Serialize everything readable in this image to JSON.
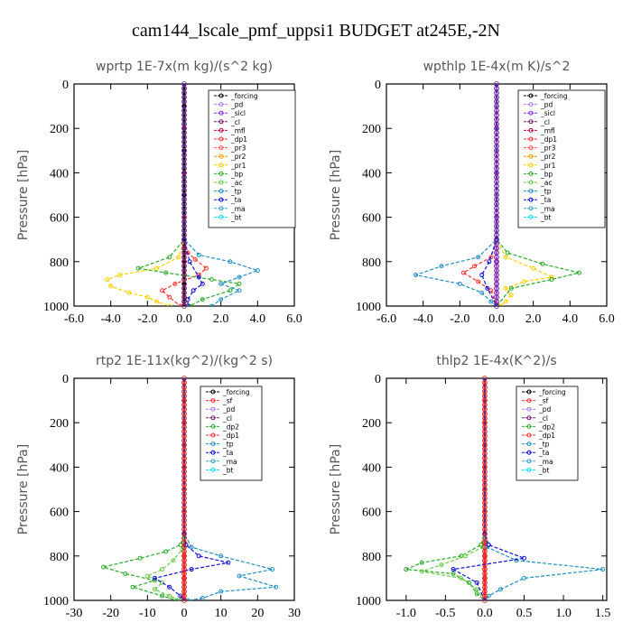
{
  "figure_title": "cam144_lscale_pmf_uppsi1  BUDGET at245E,-2N",
  "chart_data": [
    {
      "type": "line",
      "title": "wprtp  1E-7x(m kg)/(s^2 kg)",
      "ylabel": "Pressure [hPa]",
      "xlim": [
        -6,
        6
      ],
      "ylim": [
        0,
        1000
      ],
      "y_reversed": true,
      "xticks": [
        "-6.0",
        "-4.0",
        "-2.0",
        "0.0",
        "2.0",
        "4.0",
        "6.0"
      ],
      "yticks": [
        "0",
        "200",
        "400",
        "600",
        "800",
        "1000"
      ],
      "legend": [
        "_forcing",
        "_pd",
        "_sicl",
        "_cl",
        "_mfl",
        "_dp1",
        "_pr3",
        "_pr2",
        "_pr1",
        "_bp",
        "_ac",
        "_tp",
        "_ta",
        "_ma",
        "_bt"
      ],
      "series": [
        {
          "name": "_forcing",
          "color": "#000000",
          "x": [
            0,
            0,
            0,
            0,
            0,
            0,
            0,
            0,
            0,
            0,
            0
          ],
          "y": [
            0,
            100,
            200,
            300,
            400,
            500,
            600,
            700,
            800,
            900,
            1000
          ]
        },
        {
          "name": "_pd",
          "color": "#b07cf0",
          "x": [
            0,
            0,
            0,
            0,
            0,
            0
          ],
          "y": [
            0,
            200,
            400,
            600,
            800,
            1000
          ]
        },
        {
          "name": "_mfl",
          "color": "#c0004a",
          "x": [
            0,
            0,
            0,
            0,
            0,
            0
          ],
          "y": [
            0,
            200,
            400,
            600,
            800,
            1000
          ]
        },
        {
          "name": "_dp1",
          "color": "#ff3030",
          "x": [
            0,
            0,
            0,
            0.2,
            0.6,
            1.2,
            0.8,
            -0.5,
            -1.2,
            -0.8,
            -0.2
          ],
          "y": [
            0,
            600,
            700,
            760,
            790,
            830,
            860,
            900,
            930,
            960,
            1000
          ]
        },
        {
          "name": "_pr1",
          "color": "#ffd000",
          "x": [
            0,
            0,
            -0.3,
            -1.5,
            -3.5,
            -4.2,
            -4.0,
            -3.0,
            -2.0,
            -1.5,
            -0.8
          ],
          "y": [
            0,
            700,
            780,
            830,
            860,
            880,
            910,
            940,
            960,
            980,
            1000
          ]
        },
        {
          "name": "_bp",
          "color": "#2aaa2a",
          "x": [
            0,
            0,
            -0.8,
            -2.5,
            -1.0,
            1.5,
            3.0,
            2.5,
            1.0,
            0.3
          ],
          "y": [
            0,
            700,
            780,
            830,
            850,
            880,
            900,
            930,
            970,
            1000
          ]
        },
        {
          "name": "_tp",
          "color": "#2090c0",
          "x": [
            0,
            0,
            0.8,
            2.5,
            4.0,
            3.0,
            2.0,
            3.0,
            2.0,
            1.5
          ],
          "y": [
            0,
            700,
            770,
            800,
            840,
            870,
            900,
            930,
            970,
            1000
          ]
        },
        {
          "name": "_ta",
          "color": "#1010d0",
          "x": [
            0,
            0,
            0.3,
            0.8,
            1.0,
            0.5,
            0.2,
            0.2
          ],
          "y": [
            0,
            700,
            800,
            870,
            900,
            930,
            970,
            1000
          ]
        }
      ]
    },
    {
      "type": "line",
      "title": "wpthlp  1E-4x(m K)/s^2",
      "ylabel": "Pressure [hPa]",
      "xlim": [
        -6,
        6
      ],
      "ylim": [
        0,
        1000
      ],
      "y_reversed": true,
      "xticks": [
        "-6.0",
        "-4.0",
        "-2.0",
        "0.0",
        "2.0",
        "4.0",
        "6.0"
      ],
      "yticks": [
        "0",
        "200",
        "400",
        "600",
        "800",
        "1000"
      ],
      "legend": [
        "_forcing",
        "_pd",
        "_sicl",
        "_cl",
        "_mfl",
        "_dp1",
        "_pr3",
        "_pr2",
        "_pr1",
        "_bp",
        "_ac",
        "_tp",
        "_ta",
        "_ma",
        "_bt"
      ],
      "series": [
        {
          "name": "_forcing",
          "color": "#b07cf0",
          "x": [
            0,
            0,
            0,
            0,
            0,
            0,
            0,
            0,
            0,
            0,
            0
          ],
          "y": [
            0,
            100,
            200,
            300,
            400,
            500,
            600,
            700,
            800,
            900,
            1000
          ]
        },
        {
          "name": "_sicl",
          "color": "#8a2be2",
          "x": [
            0,
            0,
            0,
            0,
            0,
            0
          ],
          "y": [
            0,
            200,
            400,
            600,
            800,
            1000
          ]
        },
        {
          "name": "_pr1",
          "color": "#ffd000",
          "x": [
            0,
            0,
            0.5,
            2.0,
            3.0,
            1.5,
            0.5,
            0.8,
            0.5,
            0.2
          ],
          "y": [
            0,
            700,
            780,
            830,
            870,
            890,
            920,
            950,
            980,
            1000
          ]
        },
        {
          "name": "_bp",
          "color": "#2aaa2a",
          "x": [
            0,
            0,
            0.6,
            2.5,
            4.5,
            3.0,
            0.8,
            0
          ],
          "y": [
            0,
            700,
            760,
            810,
            850,
            880,
            920,
            1000
          ]
        },
        {
          "name": "_pr3",
          "color": "#ff3030",
          "x": [
            0,
            0,
            -0.3,
            -1.2,
            -1.8,
            -1.0,
            -0.3,
            0
          ],
          "y": [
            0,
            700,
            780,
            820,
            850,
            890,
            930,
            1000
          ]
        },
        {
          "name": "_tp",
          "color": "#2090c0",
          "x": [
            0,
            0,
            -1.0,
            -3.0,
            -4.4,
            -2.0,
            -0.8,
            -0.3,
            0
          ],
          "y": [
            0,
            700,
            780,
            820,
            860,
            900,
            940,
            980,
            1000
          ]
        },
        {
          "name": "_ta",
          "color": "#1010d0",
          "x": [
            0,
            0,
            -0.4,
            -0.8,
            -0.5,
            0
          ],
          "y": [
            0,
            700,
            800,
            860,
            920,
            1000
          ]
        }
      ]
    },
    {
      "type": "line",
      "title": "rtp2  1E-11x(kg^2)/(kg^2 s)",
      "ylabel": "Pressure [hPa]",
      "xlim": [
        -30,
        30
      ],
      "ylim": [
        0,
        1000
      ],
      "y_reversed": true,
      "xticks": [
        "-30",
        "-20",
        "-10",
        "0",
        "10",
        "20",
        "30"
      ],
      "yticks": [
        "0",
        "200",
        "400",
        "600",
        "800",
        "1000"
      ],
      "legend": [
        "_forcing",
        "_sf",
        "_pd",
        "_cl",
        "_dp2",
        "_dp1",
        "_tp",
        "_ta",
        "_ma",
        "_bt"
      ],
      "series": [
        {
          "name": "_forcing",
          "color": "#ff3030",
          "x": [
            0,
            0,
            0,
            0,
            0,
            0,
            0,
            0,
            0,
            0,
            0
          ],
          "y": [
            0,
            100,
            200,
            300,
            400,
            500,
            600,
            700,
            800,
            900,
            1000
          ]
        },
        {
          "name": "_dp2",
          "color": "#2aaa2a",
          "x": [
            0,
            0,
            -1,
            -5,
            -12,
            -22,
            -16,
            -8,
            -14,
            -6,
            -2
          ],
          "y": [
            0,
            700,
            750,
            780,
            810,
            850,
            880,
            910,
            940,
            980,
            1000
          ]
        },
        {
          "name": "_dp1",
          "color": "#66cc44",
          "x": [
            0,
            0,
            -0.5,
            -3,
            -6,
            -10,
            -6,
            -8,
            -4,
            -1
          ],
          "y": [
            0,
            700,
            770,
            820,
            860,
            890,
            920,
            950,
            980,
            1000
          ]
        },
        {
          "name": "_tp",
          "color": "#2090c0",
          "x": [
            0,
            0,
            2,
            10,
            24,
            15,
            25,
            10,
            5,
            1
          ],
          "y": [
            0,
            700,
            760,
            800,
            860,
            890,
            940,
            960,
            990,
            1000
          ]
        },
        {
          "name": "_ta",
          "color": "#1010d0",
          "x": [
            0,
            0,
            0.5,
            4,
            12,
            2,
            -8,
            -4,
            -1,
            0
          ],
          "y": [
            0,
            700,
            750,
            800,
            830,
            860,
            900,
            940,
            980,
            1000
          ]
        }
      ]
    },
    {
      "type": "line",
      "title": "thlp2  1E-4x(K^2)/s",
      "ylabel": "Pressure [hPa]",
      "xlim": [
        -1.25,
        1.55
      ],
      "ylim": [
        0,
        1000
      ],
      "y_reversed": true,
      "xticks": [
        "-1.0",
        "-0.5",
        "0.0",
        "0.5",
        "1.0",
        "1.5"
      ],
      "xtick_values": [
        -1.0,
        -0.5,
        0.0,
        0.5,
        1.0,
        1.5
      ],
      "yticks": [
        "0",
        "200",
        "400",
        "600",
        "800",
        "1000"
      ],
      "legend": [
        "_forcing",
        "_sf",
        "_pd",
        "_cl",
        "_dp2",
        "_dp1",
        "_tp",
        "_ta",
        "_ma",
        "_bt"
      ],
      "series": [
        {
          "name": "_forcing",
          "color": "#ff3030",
          "x": [
            0,
            0,
            0,
            0,
            0,
            0,
            0,
            0,
            0,
            0,
            0
          ],
          "y": [
            0,
            100,
            200,
            300,
            400,
            500,
            600,
            700,
            800,
            900,
            1000
          ]
        },
        {
          "name": "_dp2",
          "color": "#2aaa2a",
          "x": [
            0,
            0,
            -0.05,
            -0.3,
            -0.8,
            -1.0,
            -0.4,
            -0.2,
            -0.1,
            0
          ],
          "y": [
            0,
            700,
            750,
            800,
            830,
            860,
            880,
            920,
            970,
            1000
          ]
        },
        {
          "name": "_dp1",
          "color": "#66cc44",
          "x": [
            0,
            0,
            -0.03,
            -0.25,
            -0.55,
            -0.8,
            -0.3,
            -0.1,
            0
          ],
          "y": [
            0,
            700,
            760,
            800,
            840,
            870,
            900,
            950,
            1000
          ]
        },
        {
          "name": "_tp",
          "color": "#2090c0",
          "x": [
            0,
            0,
            0.03,
            0.4,
            1.5,
            0.5,
            0.2,
            0.05,
            0
          ],
          "y": [
            0,
            700,
            760,
            820,
            860,
            900,
            950,
            980,
            1000
          ]
        },
        {
          "name": "_ta",
          "color": "#1010d0",
          "x": [
            0,
            0,
            0.05,
            0.5,
            -0.4,
            -0.1,
            0
          ],
          "y": [
            0,
            700,
            750,
            810,
            860,
            920,
            1000
          ]
        }
      ]
    }
  ]
}
